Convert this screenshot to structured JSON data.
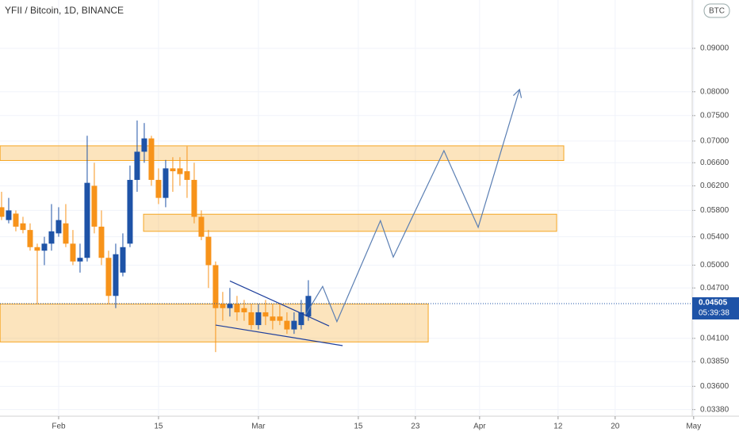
{
  "chart_data": {
    "type": "candlestick",
    "title": "YFII / Bitcoin, 1D, BINANCE",
    "y_unit": "BTC",
    "log_scale": true,
    "grid": true,
    "up_color": "#1e53a7",
    "down_color": "#f7931a",
    "x": [
      24,
      25,
      26,
      27,
      28,
      29,
      30,
      31,
      32,
      33,
      34,
      35,
      36,
      37,
      38,
      39,
      40,
      41,
      42,
      43,
      44,
      45,
      46,
      47,
      48,
      49,
      50,
      51,
      52,
      53,
      54,
      55,
      56,
      57,
      58,
      59,
      60,
      61,
      62,
      63,
      64,
      65,
      66,
      67
    ],
    "open": [
      0.0585,
      0.0565,
      0.0575,
      0.056,
      0.055,
      0.0525,
      0.052,
      0.053,
      0.0545,
      0.056,
      0.053,
      0.0505,
      0.051,
      0.062,
      0.0555,
      0.051,
      0.046,
      0.049,
      0.053,
      0.063,
      0.068,
      0.0705,
      0.063,
      0.06,
      0.065,
      0.065,
      0.0645,
      0.063,
      0.057,
      0.054,
      0.05,
      0.045,
      0.0445,
      0.045,
      0.0445,
      0.044,
      0.0425,
      0.044,
      0.0435,
      0.0435,
      0.043,
      0.042,
      0.0425,
      0.0435
    ],
    "high": [
      0.061,
      0.06,
      0.058,
      0.057,
      0.056,
      0.053,
      0.054,
      0.059,
      0.0585,
      0.059,
      0.055,
      0.053,
      0.071,
      0.066,
      0.058,
      0.052,
      0.053,
      0.0545,
      0.0655,
      0.074,
      0.0735,
      0.071,
      0.065,
      0.0665,
      0.067,
      0.067,
      0.069,
      0.066,
      0.058,
      0.055,
      0.0505,
      0.0465,
      0.047,
      0.046,
      0.0455,
      0.045,
      0.045,
      0.0455,
      0.045,
      0.045,
      0.044,
      0.044,
      0.0455,
      0.048
    ],
    "low": [
      0.0565,
      0.056,
      0.0548,
      0.0545,
      0.052,
      0.045,
      0.05,
      0.052,
      0.054,
      0.0525,
      0.05,
      0.049,
      0.0505,
      0.0545,
      0.05,
      0.045,
      0.0445,
      0.0485,
      0.0525,
      0.061,
      0.066,
      0.062,
      0.059,
      0.0585,
      0.061,
      0.062,
      0.06,
      0.056,
      0.0535,
      0.047,
      0.0395,
      0.043,
      0.0435,
      0.043,
      0.043,
      0.042,
      0.042,
      0.0425,
      0.042,
      0.0425,
      0.0415,
      0.0415,
      0.042,
      0.043
    ],
    "close": [
      0.057,
      0.058,
      0.0555,
      0.055,
      0.0525,
      0.052,
      0.053,
      0.0548,
      0.0565,
      0.053,
      0.0505,
      0.051,
      0.0625,
      0.0555,
      0.051,
      0.046,
      0.0515,
      0.0525,
      0.063,
      0.068,
      0.0705,
      0.063,
      0.06,
      0.065,
      0.0645,
      0.064,
      0.063,
      0.057,
      0.054,
      0.05,
      0.0445,
      0.0445,
      0.045,
      0.044,
      0.044,
      0.0425,
      0.044,
      0.0435,
      0.043,
      0.043,
      0.042,
      0.043,
      0.044,
      0.046
    ],
    "xlim": [
      23.78,
      120.8
    ],
    "ylim": [
      0.0332,
      0.1026
    ],
    "xticks": [
      {
        "value": 32,
        "label": "Feb"
      },
      {
        "value": 46,
        "label": "15"
      },
      {
        "value": 60,
        "label": "Mar"
      },
      {
        "value": 74,
        "label": "15"
      },
      {
        "value": 82,
        "label": "23"
      },
      {
        "value": 91,
        "label": "Apr"
      },
      {
        "value": 102,
        "label": "12"
      },
      {
        "value": 110,
        "label": "20"
      },
      {
        "value": 121,
        "label": "May"
      }
    ],
    "yticks": [
      {
        "value": 0.0338,
        "label": "0.03380"
      },
      {
        "value": 0.036,
        "label": "0.03600"
      },
      {
        "value": 0.0385,
        "label": "0.03850"
      },
      {
        "value": 0.041,
        "label": "0.04100"
      },
      {
        "value": 0.047,
        "label": "0.04700"
      },
      {
        "value": 0.05,
        "label": "0.05000"
      },
      {
        "value": 0.054,
        "label": "0.05400"
      },
      {
        "value": 0.058,
        "label": "0.05800"
      },
      {
        "value": 0.062,
        "label": "0.06200"
      },
      {
        "value": 0.066,
        "label": "0.06600"
      },
      {
        "value": 0.07,
        "label": "0.07000"
      },
      {
        "value": 0.075,
        "label": "0.07500"
      },
      {
        "value": 0.08,
        "label": "0.08000"
      },
      {
        "value": 0.09,
        "label": "0.09000"
      }
    ],
    "last_price": 0.04505,
    "countdown": "05:39:38",
    "zones": [
      {
        "x": [
          23.8,
          102.8
        ],
        "y": [
          0.0664,
          0.0691
        ]
      },
      {
        "x": [
          43.9,
          101.8
        ],
        "y": [
          0.0548,
          0.0574
        ]
      },
      {
        "x": [
          23.8,
          83.8
        ],
        "y": [
          0.0406,
          0.045
        ]
      }
    ],
    "trend_lines": [
      {
        "x": [
          56,
          69.9
        ],
        "y": [
          0.0479,
          0.0424
        ]
      },
      {
        "x": [
          54,
          71.8
        ],
        "y": [
          0.0425,
          0.0402
        ]
      }
    ],
    "projection": {
      "x": [
        66.6,
        69,
        71,
        77.1,
        78.9,
        86,
        90.8,
        96.6
      ],
      "y": [
        0.0437,
        0.0472,
        0.0429,
        0.0564,
        0.0511,
        0.0682,
        0.0554,
        0.0805
      ]
    }
  }
}
